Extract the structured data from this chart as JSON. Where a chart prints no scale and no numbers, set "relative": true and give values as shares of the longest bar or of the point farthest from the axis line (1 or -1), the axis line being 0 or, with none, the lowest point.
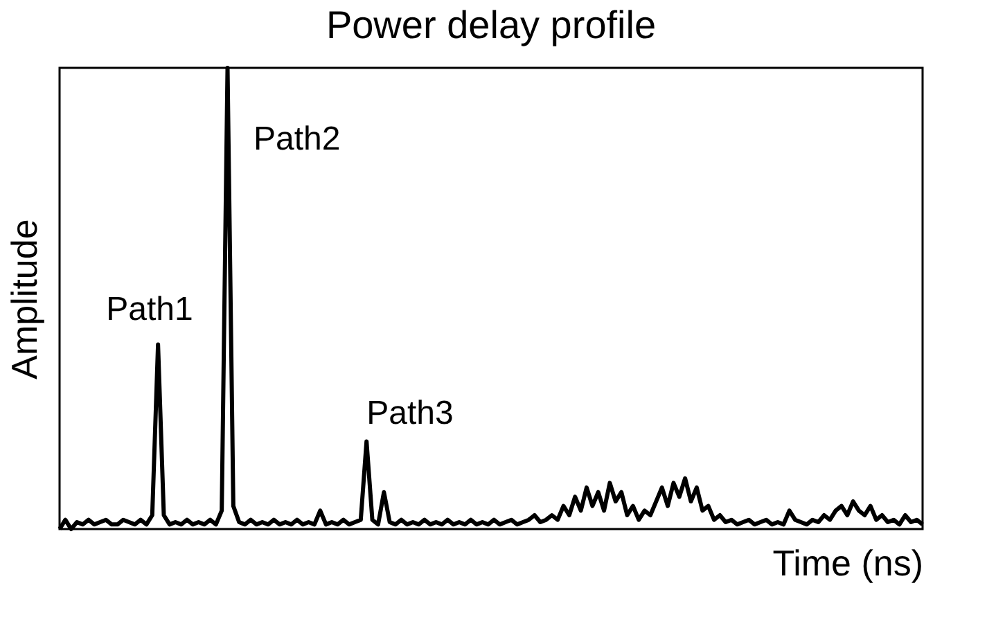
{
  "chart_data": {
    "type": "line",
    "title": "Power delay profile",
    "xlabel": "Time (ns)",
    "ylabel": "Amplitude",
    "relative": true,
    "categories": [
      null,
      null,
      null,
      null,
      null,
      null,
      null,
      null,
      null,
      null,
      null,
      null,
      null,
      null,
      null,
      null,
      null,
      null,
      null,
      null,
      null,
      null,
      null,
      null,
      null,
      null,
      null,
      null,
      null,
      null,
      null,
      null,
      null,
      null,
      null,
      null,
      null,
      null,
      null,
      null,
      null,
      null,
      null,
      null,
      null,
      null,
      null,
      null,
      null,
      null,
      null,
      null,
      null,
      null,
      null,
      null,
      null,
      null,
      null,
      null,
      null,
      null,
      null,
      null,
      null,
      null,
      null,
      null,
      null,
      null,
      null,
      null,
      null,
      null,
      null,
      null,
      null,
      null,
      null,
      null,
      null,
      null,
      null,
      null,
      null,
      null,
      null,
      null,
      null,
      null,
      null,
      null,
      null,
      null,
      null,
      null,
      null,
      null,
      null,
      null,
      null,
      null,
      null,
      null,
      null,
      null,
      null,
      null,
      null,
      null,
      null,
      null,
      null,
      null,
      null,
      null,
      null,
      null,
      null,
      null,
      null,
      null,
      null,
      null,
      null,
      null,
      null,
      null,
      null,
      null,
      null,
      null,
      null,
      null,
      null,
      null,
      null,
      null,
      null,
      null,
      null,
      null,
      null,
      null,
      null,
      null,
      null,
      null,
      null,
      null
    ],
    "series": [
      {
        "color": "#000000",
        "values": [
          0,
          0.02,
          0,
          0.015,
          0.01,
          0.02,
          0.01,
          0.015,
          0.02,
          0.01,
          0.01,
          0.02,
          0.015,
          0.01,
          0.02,
          0.01,
          0.03,
          0.4,
          0.03,
          0.01,
          0.015,
          0.01,
          0.02,
          0.01,
          0.015,
          0.01,
          0.02,
          0.01,
          0.04,
          1.0,
          0.05,
          0.015,
          0.01,
          0.02,
          0.01,
          0.015,
          0.01,
          0.02,
          0.01,
          0.015,
          0.01,
          0.02,
          0.01,
          0.015,
          0.01,
          0.04,
          0.01,
          0.015,
          0.01,
          0.02,
          0.01,
          0.015,
          0.02,
          0.19,
          0.02,
          0.01,
          0.08,
          0.015,
          0.01,
          0.02,
          0.01,
          0.015,
          0.01,
          0.02,
          0.01,
          0.015,
          0.01,
          0.02,
          0.01,
          0.015,
          0.01,
          0.02,
          0.01,
          0.015,
          0.01,
          0.02,
          0.01,
          0.015,
          0.02,
          0.01,
          0.015,
          0.02,
          0.03,
          0.015,
          0.02,
          0.03,
          0.02,
          0.05,
          0.03,
          0.07,
          0.04,
          0.09,
          0.05,
          0.08,
          0.04,
          0.1,
          0.06,
          0.08,
          0.03,
          0.05,
          0.02,
          0.04,
          0.03,
          0.06,
          0.09,
          0.05,
          0.1,
          0.07,
          0.11,
          0.06,
          0.09,
          0.04,
          0.05,
          0.02,
          0.03,
          0.015,
          0.02,
          0.01,
          0.015,
          0.02,
          0.01,
          0.015,
          0.02,
          0.01,
          0.015,
          0.01,
          0.04,
          0.02,
          0.015,
          0.01,
          0.02,
          0.015,
          0.03,
          0.02,
          0.04,
          0.05,
          0.03,
          0.06,
          0.04,
          0.03,
          0.05,
          0.02,
          0.03,
          0.015,
          0.02,
          0.01,
          0.03,
          0.015,
          0.02,
          0.01
        ]
      }
    ],
    "annotations": [
      "Path1",
      "Path2",
      "Path3"
    ]
  }
}
